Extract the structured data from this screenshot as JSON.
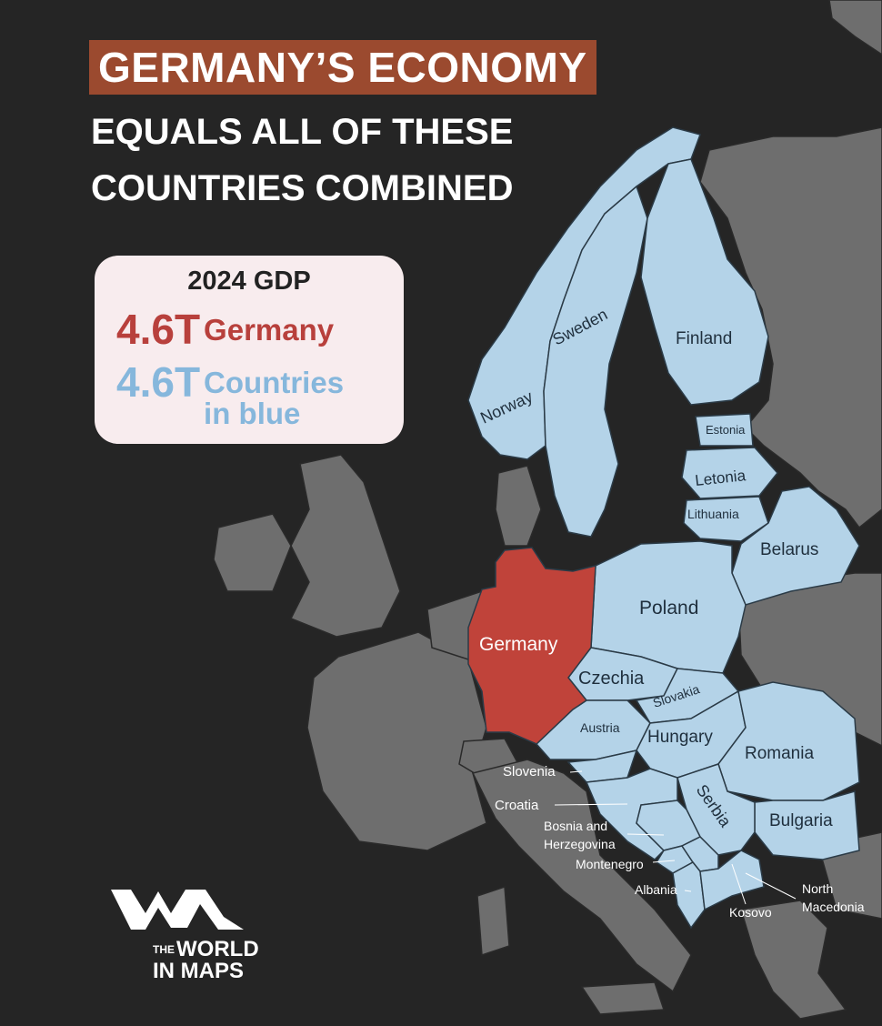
{
  "title": {
    "highlight": "GERMANY’S ECONOMY",
    "line2": "EQUALS ALL OF THESE",
    "line3": "COUNTRIES COMBINED"
  },
  "gdp_box": {
    "heading": "2024 GDP",
    "germany_value": "4.6T",
    "germany_label": "Germany",
    "blue_value": "4.6T",
    "blue_label_line1": "Countries",
    "blue_label_line2": "in blue"
  },
  "countries": {
    "germany": "Germany",
    "norway": "Norway",
    "sweden": "Sweden",
    "finland": "Finland",
    "estonia": "Estonia",
    "latvia": "Letonia",
    "lithuania": "Lithuania",
    "belarus": "Belarus",
    "poland": "Poland",
    "czechia": "Czechia",
    "slovakia": "Slovakia",
    "austria": "Austria",
    "hungary": "Hungary",
    "romania": "Romania",
    "slovenia": "Slovenia",
    "croatia": "Croatia",
    "serbia": "Serbia",
    "bulgaria": "Bulgaria",
    "bosnia_line1": "Bosnia and",
    "bosnia_line2": "Herzegovina",
    "montenegro": "Montenegro",
    "albania": "Albania",
    "kosovo": "Kosovo",
    "north_macedonia_line1": "North",
    "north_macedonia_line2": "Macedonia"
  },
  "brand": {
    "the": "THE",
    "line1": "WORLD",
    "line2": "IN MAPS"
  },
  "colors": {
    "background": "#252525",
    "land_other": "#6e6e6e",
    "land_blue": "#b4d3e8",
    "germany": "#c0433a",
    "title_bar": "#9b4a2f",
    "card": "#f8ecee"
  }
}
